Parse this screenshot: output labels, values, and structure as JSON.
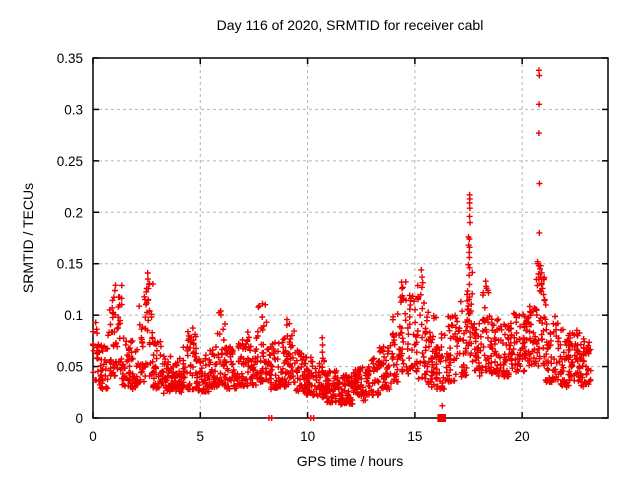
{
  "chart_data": {
    "type": "scatter",
    "title": "Day 116 of 2020, SRMTID for receiver cabl",
    "xlabel": "GPS time / hours",
    "ylabel": "SRMTID / TECUs",
    "xlim": [
      0,
      24
    ],
    "ylim": [
      0,
      0.35
    ],
    "grid": true,
    "legend": "none",
    "marker": "plus",
    "marker_color": "#ee0000",
    "grid_color": "#b4b4b4",
    "border_color": "#000000",
    "xticks": [
      [
        0,
        "0"
      ],
      [
        5,
        "5"
      ],
      [
        10,
        "10"
      ],
      [
        15,
        "15"
      ],
      [
        20,
        "20"
      ]
    ],
    "yticks": [
      [
        0,
        "0"
      ],
      [
        0.05,
        "0.05"
      ],
      [
        0.1,
        "0.1"
      ],
      [
        0.15,
        "0.15"
      ],
      [
        0.2,
        "0.2"
      ],
      [
        0.25,
        "0.25"
      ],
      [
        0.3,
        "0.3"
      ],
      [
        0.35,
        "0.35"
      ]
    ],
    "point_bands": [
      [
        0.0,
        0.3,
        0.035,
        0.095,
        22,
        1.0
      ],
      [
        0.3,
        0.7,
        0.028,
        0.072,
        30,
        1.3
      ],
      [
        0.7,
        1.05,
        0.04,
        0.118,
        30,
        1.1
      ],
      [
        1.05,
        1.35,
        0.045,
        0.13,
        26,
        1.2
      ],
      [
        1.35,
        1.75,
        0.03,
        0.08,
        34,
        1.4
      ],
      [
        1.75,
        2.15,
        0.028,
        0.078,
        34,
        1.4
      ],
      [
        2.15,
        2.45,
        0.035,
        0.118,
        26,
        1.3
      ],
      [
        2.45,
        2.8,
        0.04,
        0.142,
        30,
        1.4
      ],
      [
        2.8,
        3.2,
        0.028,
        0.08,
        36,
        1.5
      ],
      [
        3.2,
        3.7,
        0.024,
        0.062,
        42,
        1.3
      ],
      [
        3.7,
        4.2,
        0.025,
        0.058,
        42,
        1.2
      ],
      [
        4.2,
        4.8,
        0.028,
        0.088,
        48,
        1.7
      ],
      [
        4.8,
        5.4,
        0.025,
        0.063,
        48,
        1.4
      ],
      [
        5.4,
        5.8,
        0.03,
        0.076,
        34,
        1.5
      ],
      [
        5.8,
        6.2,
        0.032,
        0.105,
        34,
        1.7
      ],
      [
        6.2,
        6.7,
        0.028,
        0.07,
        42,
        1.4
      ],
      [
        6.7,
        7.2,
        0.03,
        0.076,
        42,
        1.4
      ],
      [
        7.2,
        7.7,
        0.032,
        0.085,
        42,
        1.5
      ],
      [
        7.7,
        8.1,
        0.035,
        0.112,
        34,
        1.8
      ],
      [
        8.1,
        8.6,
        0.028,
        0.075,
        40,
        1.5
      ],
      [
        8.6,
        9.0,
        0.03,
        0.08,
        34,
        1.5
      ],
      [
        9.0,
        9.4,
        0.032,
        0.096,
        34,
        1.6
      ],
      [
        9.4,
        9.9,
        0.026,
        0.066,
        42,
        1.4
      ],
      [
        9.9,
        10.4,
        0.022,
        0.06,
        44,
        1.4
      ],
      [
        10.4,
        10.9,
        0.02,
        0.056,
        48,
        1.3
      ],
      [
        10.9,
        11.5,
        0.015,
        0.046,
        56,
        1.2
      ],
      [
        11.5,
        12.1,
        0.013,
        0.042,
        58,
        1.2
      ],
      [
        12.1,
        12.7,
        0.017,
        0.05,
        52,
        1.3
      ],
      [
        12.7,
        13.3,
        0.022,
        0.06,
        48,
        1.3
      ],
      [
        13.3,
        13.9,
        0.028,
        0.074,
        46,
        1.4
      ],
      [
        13.9,
        14.3,
        0.035,
        0.102,
        34,
        1.6
      ],
      [
        14.3,
        14.65,
        0.04,
        0.133,
        28,
        1.5
      ],
      [
        14.65,
        15.1,
        0.04,
        0.12,
        36,
        1.3
      ],
      [
        15.1,
        15.55,
        0.038,
        0.145,
        36,
        1.6
      ],
      [
        15.55,
        16.0,
        0.03,
        0.105,
        40,
        1.5
      ],
      [
        16.0,
        16.55,
        0.028,
        0.082,
        44,
        1.4
      ],
      [
        16.55,
        17.1,
        0.035,
        0.1,
        44,
        1.4
      ],
      [
        17.1,
        17.45,
        0.04,
        0.122,
        30,
        1.4
      ],
      [
        17.45,
        17.75,
        0.05,
        0.142,
        26,
        1.2
      ],
      [
        17.75,
        18.15,
        0.04,
        0.092,
        36,
        1.4
      ],
      [
        18.15,
        18.5,
        0.045,
        0.135,
        30,
        1.3
      ],
      [
        18.5,
        19.0,
        0.04,
        0.098,
        42,
        1.4
      ],
      [
        19.0,
        19.6,
        0.04,
        0.092,
        50,
        1.4
      ],
      [
        19.6,
        20.2,
        0.045,
        0.102,
        52,
        1.4
      ],
      [
        20.2,
        20.65,
        0.05,
        0.112,
        40,
        1.3
      ],
      [
        20.65,
        21.05,
        0.05,
        0.15,
        38,
        1.2
      ],
      [
        21.05,
        21.6,
        0.035,
        0.1,
        48,
        1.4
      ],
      [
        21.6,
        22.2,
        0.03,
        0.092,
        52,
        1.4
      ],
      [
        22.2,
        22.75,
        0.035,
        0.09,
        48,
        1.4
      ],
      [
        22.75,
        23.2,
        0.03,
        0.078,
        40,
        1.3
      ]
    ],
    "outlier_points": [
      [
        8.2,
        0
      ],
      [
        8.33,
        0
      ],
      [
        10.15,
        0
      ],
      [
        10.28,
        0
      ],
      [
        10.68,
        0.078
      ],
      [
        10.7,
        0.071
      ],
      [
        10.69,
        0.064
      ],
      [
        10.71,
        0.058
      ],
      [
        1.02,
        0.124
      ],
      [
        1.05,
        0.129
      ],
      [
        2.55,
        0.141
      ],
      [
        2.56,
        0.135
      ],
      [
        5.95,
        0.104
      ],
      [
        7.9,
        0.111
      ],
      [
        14.38,
        0.132
      ],
      [
        14.4,
        0.126
      ],
      [
        15.3,
        0.144
      ],
      [
        15.33,
        0.137
      ],
      [
        16.28,
        0.012
      ],
      [
        17.55,
        0.217
      ],
      [
        17.56,
        0.213
      ],
      [
        17.55,
        0.209
      ],
      [
        17.56,
        0.204
      ],
      [
        17.55,
        0.196
      ],
      [
        17.57,
        0.19
      ],
      [
        17.5,
        0.176
      ],
      [
        17.54,
        0.174
      ],
      [
        17.51,
        0.168
      ],
      [
        17.55,
        0.166
      ],
      [
        17.53,
        0.161
      ],
      [
        17.54,
        0.156
      ],
      [
        17.5,
        0.149
      ],
      [
        17.55,
        0.146
      ],
      [
        18.3,
        0.133
      ],
      [
        18.32,
        0.128
      ],
      [
        20.78,
        0.338
      ],
      [
        20.8,
        0.333
      ],
      [
        20.79,
        0.305
      ],
      [
        20.78,
        0.277
      ],
      [
        20.81,
        0.228
      ],
      [
        20.8,
        0.18
      ],
      [
        20.72,
        0.152
      ],
      [
        20.78,
        0.148
      ],
      [
        20.83,
        0.145
      ],
      [
        20.76,
        0.14
      ],
      [
        20.85,
        0.137
      ],
      [
        20.9,
        0.131
      ],
      [
        20.95,
        0.126
      ],
      [
        21.0,
        0.12
      ],
      [
        21.06,
        0.115
      ],
      [
        21.1,
        0.11
      ]
    ],
    "gap_marker": {
      "x0": 16.05,
      "x1": 16.45,
      "y": 0
    }
  }
}
